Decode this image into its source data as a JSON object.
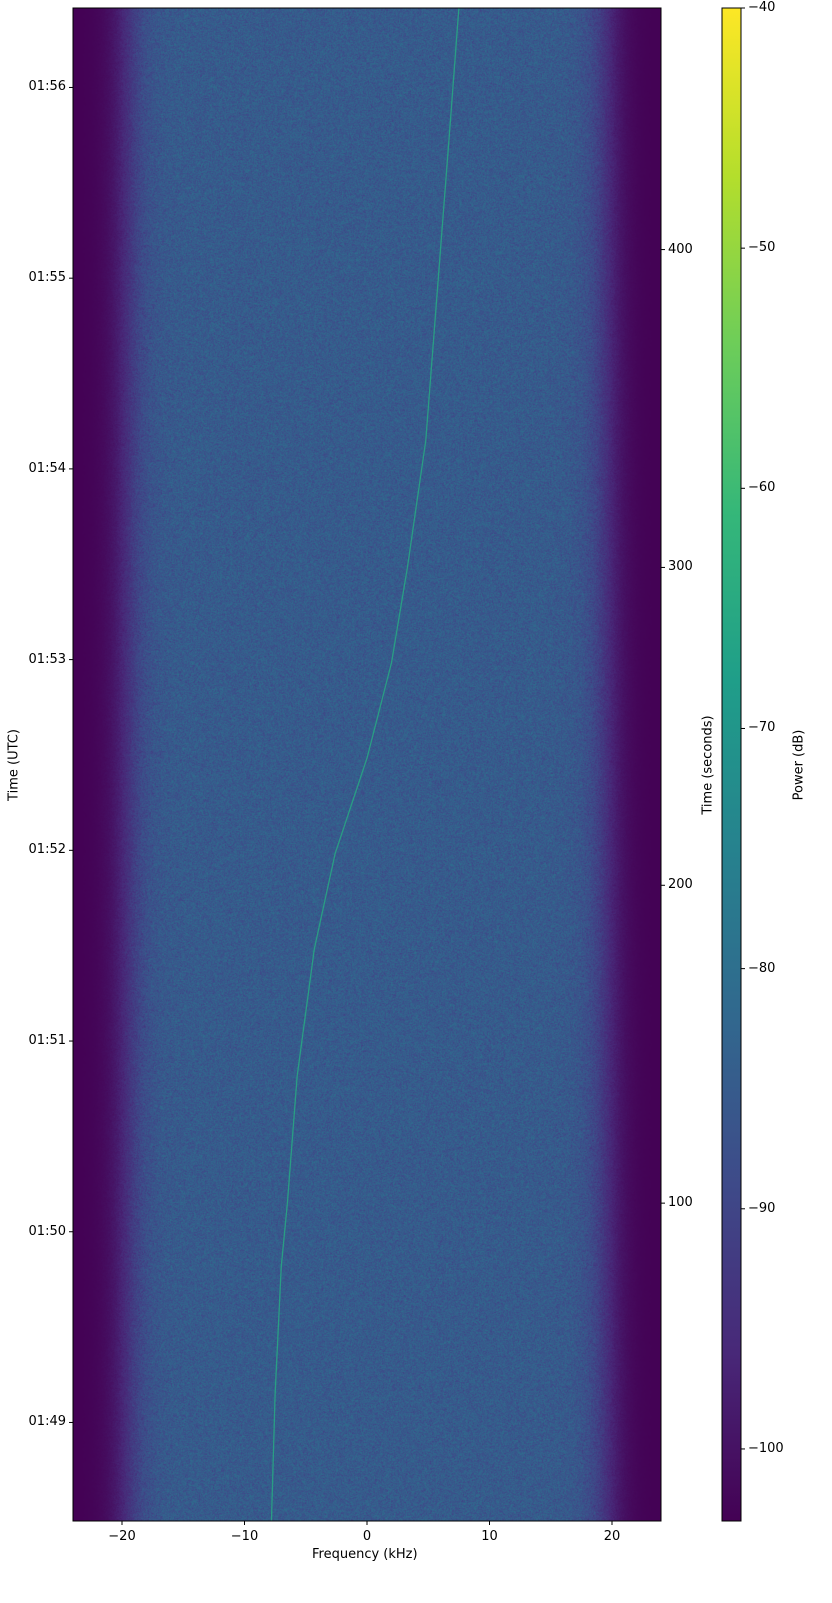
{
  "chart_data": {
    "type": "heatmap",
    "title": "",
    "xlabel": "Frequency (kHz)",
    "ylabel_left": "Time (UTC)",
    "ylabel_right": "Time (seconds)",
    "colorbar_label": "Power (dB)",
    "colormap": "viridis",
    "xlim": [
      -24,
      24
    ],
    "ylim_seconds": [
      0,
      476
    ],
    "utc_range": [
      "01:48:29",
      "01:56:26"
    ],
    "clim": [
      -103,
      -40
    ],
    "x_ticks": [
      -20,
      -10,
      0,
      10,
      20
    ],
    "x_tick_labels": [
      "−20",
      "−10",
      "0",
      "10",
      "20"
    ],
    "y_right_ticks": [
      100,
      200,
      300,
      400
    ],
    "y_left_ticks": [
      {
        "label": "01:49",
        "seconds": 31
      },
      {
        "label": "01:50",
        "seconds": 91
      },
      {
        "label": "01:51",
        "seconds": 151
      },
      {
        "label": "01:52",
        "seconds": 211
      },
      {
        "label": "01:53",
        "seconds": 271
      },
      {
        "label": "01:54",
        "seconds": 331
      },
      {
        "label": "01:55",
        "seconds": 391
      },
      {
        "label": "01:56",
        "seconds": 451
      }
    ],
    "colorbar_ticks": [
      -100,
      -90,
      -80,
      -70,
      -60,
      -50,
      -40
    ],
    "colorbar_tick_labels": [
      "−100",
      "−90",
      "−80",
      "−70",
      "−60",
      "−50",
      "−40"
    ],
    "noise_floor_db": -85,
    "band_edge_khz": 22,
    "signal_trace": {
      "power_db": -65,
      "points": [
        [
          -7.8,
          0
        ],
        [
          -7.5,
          40
        ],
        [
          -7.0,
          80
        ],
        [
          -6.5,
          100
        ],
        [
          -5.7,
          140
        ],
        [
          -4.3,
          180
        ],
        [
          -2.6,
          210
        ],
        [
          0,
          240
        ],
        [
          2.0,
          270
        ],
        [
          3.3,
          300
        ],
        [
          4.8,
          340
        ],
        [
          6.0,
          400
        ],
        [
          6.8,
          440
        ],
        [
          7.5,
          476
        ]
      ]
    }
  }
}
